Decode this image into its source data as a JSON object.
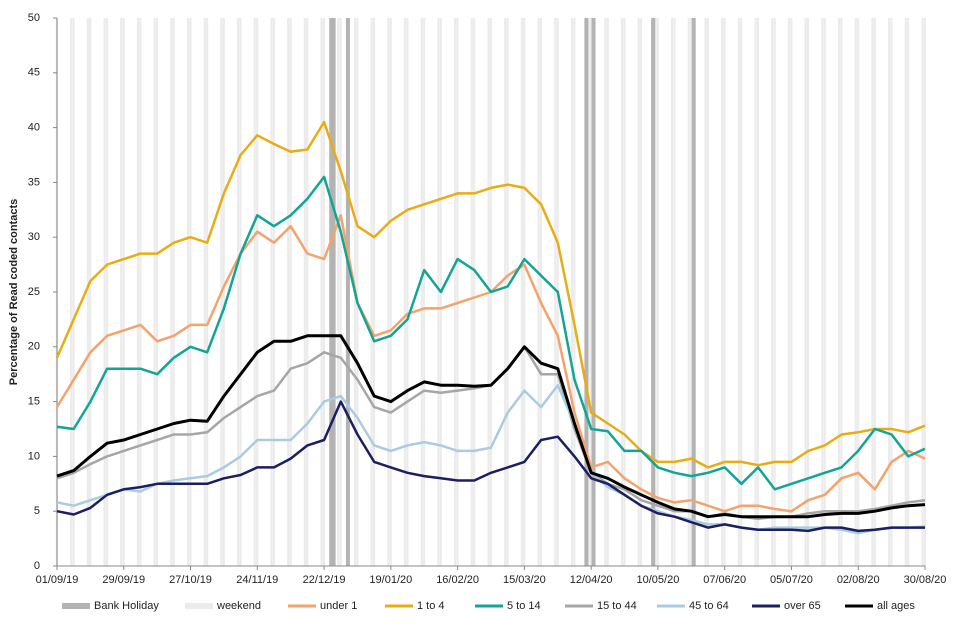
{
  "chart_data": {
    "type": "line",
    "y_label": "Percentage of Read coded contacts",
    "bank_holiday_label": "Bank Holiday",
    "weekend_label": "weekend",
    "bank_holiday_color": "#b3b3b3",
    "weekend_color": "#ebebeb",
    "bank_holidays": [
      "25/12/19",
      "26/12/19",
      "01/01/20",
      "10/04/20",
      "13/04/20",
      "08/05/20",
      "25/05/20"
    ],
    "xlim": [
      "01/09/19",
      "30/08/20"
    ],
    "xticks": [
      "01/09/19",
      "29/09/19",
      "27/10/19",
      "24/11/19",
      "22/12/19",
      "19/01/20",
      "16/02/20",
      "15/03/20",
      "12/04/20",
      "10/05/20",
      "07/06/20",
      "05/07/20",
      "02/08/20",
      "30/08/20"
    ],
    "ylim": [
      0,
      50
    ],
    "yticks": [
      0,
      5,
      10,
      15,
      20,
      25,
      30,
      35,
      40,
      45,
      50
    ],
    "x": [
      "01/09/19",
      "08/09/19",
      "15/09/19",
      "22/09/19",
      "29/09/19",
      "06/10/19",
      "13/10/19",
      "20/10/19",
      "27/10/19",
      "03/11/19",
      "10/11/19",
      "17/11/19",
      "24/11/19",
      "01/12/19",
      "08/12/19",
      "15/12/19",
      "22/12/19",
      "29/12/19",
      "05/01/20",
      "12/01/20",
      "19/01/20",
      "26/01/20",
      "02/02/20",
      "09/02/20",
      "16/02/20",
      "23/02/20",
      "01/03/20",
      "08/03/20",
      "15/03/20",
      "22/03/20",
      "29/03/20",
      "05/04/20",
      "12/04/20",
      "19/04/20",
      "26/04/20",
      "03/05/20",
      "10/05/20",
      "17/05/20",
      "24/05/20",
      "31/05/20",
      "07/06/20",
      "14/06/20",
      "21/06/20",
      "28/06/20",
      "05/07/20",
      "12/07/20",
      "19/07/20",
      "26/07/20",
      "02/08/20",
      "09/08/20",
      "16/08/20",
      "23/08/20",
      "30/08/20"
    ],
    "series": [
      {
        "name": "under 1",
        "color": "#f4a36c",
        "values": [
          14.5,
          17,
          19.5,
          21,
          21.5,
          22,
          20.5,
          21,
          22,
          22,
          25.5,
          28.5,
          30.5,
          29.5,
          31,
          28.5,
          28,
          32,
          24,
          21,
          21.5,
          23,
          23.5,
          23.5,
          24,
          24.5,
          25,
          26.5,
          27.5,
          24,
          21,
          14,
          9,
          9.5,
          8,
          7,
          6.2,
          5.8,
          6,
          5.5,
          5,
          5.5,
          5.5,
          5.2,
          5,
          6,
          6.5,
          8,
          8.5,
          7,
          9.5,
          10.5,
          9.8
        ]
      },
      {
        "name": "1 to 4",
        "color": "#e8ad14",
        "values": [
          19,
          22.5,
          26,
          27.5,
          28,
          28.5,
          28.5,
          29.5,
          30,
          29.5,
          34,
          37.5,
          39.3,
          38.5,
          37.8,
          38,
          40.5,
          36,
          31,
          30,
          31.5,
          32.5,
          33,
          33.5,
          34,
          34,
          34.5,
          34.8,
          34.5,
          33,
          29.5,
          22,
          14,
          13,
          12,
          10.5,
          9.5,
          9.5,
          9.8,
          9,
          9.5,
          9.5,
          9.2,
          9.5,
          9.5,
          10.5,
          11,
          12,
          12.2,
          12.5,
          12.5,
          12.2,
          12.8
        ]
      },
      {
        "name": "5 to 14",
        "color": "#12a596",
        "values": [
          12.7,
          12.5,
          15,
          18,
          18,
          18,
          17.5,
          19,
          20,
          19.5,
          23.5,
          28.5,
          32,
          31,
          32,
          33.5,
          35.5,
          30.5,
          24,
          20.5,
          21,
          22.5,
          27,
          25,
          28,
          27,
          25,
          25.5,
          28,
          26.5,
          25,
          17,
          12.5,
          12.3,
          10.5,
          10.5,
          9,
          8.5,
          8.2,
          8.5,
          9,
          7.5,
          9,
          7,
          7.5,
          8,
          8.5,
          9,
          10.5,
          12.5,
          12,
          10,
          10.7
        ]
      },
      {
        "name": "15 to 44",
        "color": "#a6a6a6",
        "values": [
          8,
          8.5,
          9.3,
          10,
          10.5,
          11,
          11.5,
          12,
          12,
          12.2,
          13.5,
          14.5,
          15.5,
          16,
          18,
          18.5,
          19.5,
          19,
          17,
          14.5,
          14,
          15,
          16,
          15.8,
          16,
          16.2,
          16.5,
          18,
          20,
          17.5,
          17.5,
          12.5,
          8.5,
          7.5,
          7,
          6,
          5.5,
          5,
          5,
          4.5,
          4.8,
          4.5,
          4.3,
          4.5,
          4.5,
          4.8,
          5,
          5,
          5,
          5.2,
          5.5,
          5.8,
          6
        ]
      },
      {
        "name": "45 to 64",
        "color": "#a9cce0",
        "values": [
          5.8,
          5.5,
          6,
          6.5,
          7,
          6.8,
          7.5,
          7.8,
          8,
          8.2,
          9,
          10,
          11.5,
          11.5,
          11.5,
          13,
          15,
          15.5,
          13.5,
          11,
          10.5,
          11,
          11.3,
          11,
          10.5,
          10.5,
          10.8,
          14,
          16,
          14.5,
          16.5,
          13,
          8.5,
          7.2,
          6.5,
          5.5,
          5,
          4.5,
          4.2,
          3.8,
          3.8,
          3.5,
          3.3,
          3.5,
          3.5,
          3.5,
          3.5,
          3.3,
          3,
          3.3,
          3.5,
          3.5,
          3.6
        ]
      },
      {
        "name": "over 65",
        "color": "#1c1f5f",
        "values": [
          5,
          4.7,
          5.3,
          6.5,
          7,
          7.2,
          7.5,
          7.5,
          7.5,
          7.5,
          8,
          8.3,
          9,
          9,
          9.8,
          11,
          11.5,
          15,
          12,
          9.5,
          9,
          8.5,
          8.2,
          8,
          7.8,
          7.8,
          8.5,
          9,
          9.5,
          11.5,
          11.8,
          10,
          8,
          7.5,
          6.5,
          5.5,
          4.8,
          4.5,
          4,
          3.5,
          3.8,
          3.5,
          3.3,
          3.3,
          3.3,
          3.2,
          3.5,
          3.5,
          3.2,
          3.3,
          3.5,
          3.5,
          3.5
        ]
      },
      {
        "name": "all ages",
        "color": "#000000",
        "values": [
          8.2,
          8.7,
          10,
          11.2,
          11.5,
          12,
          12.5,
          13,
          13.3,
          13.2,
          15.5,
          17.5,
          19.5,
          20.5,
          20.5,
          21,
          21,
          21,
          18.5,
          15.5,
          15,
          16,
          16.8,
          16.5,
          16.5,
          16.4,
          16.5,
          18,
          20,
          18.5,
          18,
          13,
          8.5,
          8,
          7.2,
          6.5,
          5.8,
          5.2,
          5,
          4.5,
          4.7,
          4.5,
          4.5,
          4.5,
          4.5,
          4.5,
          4.7,
          4.8,
          4.8,
          5,
          5.3,
          5.5,
          5.6
        ]
      }
    ]
  }
}
